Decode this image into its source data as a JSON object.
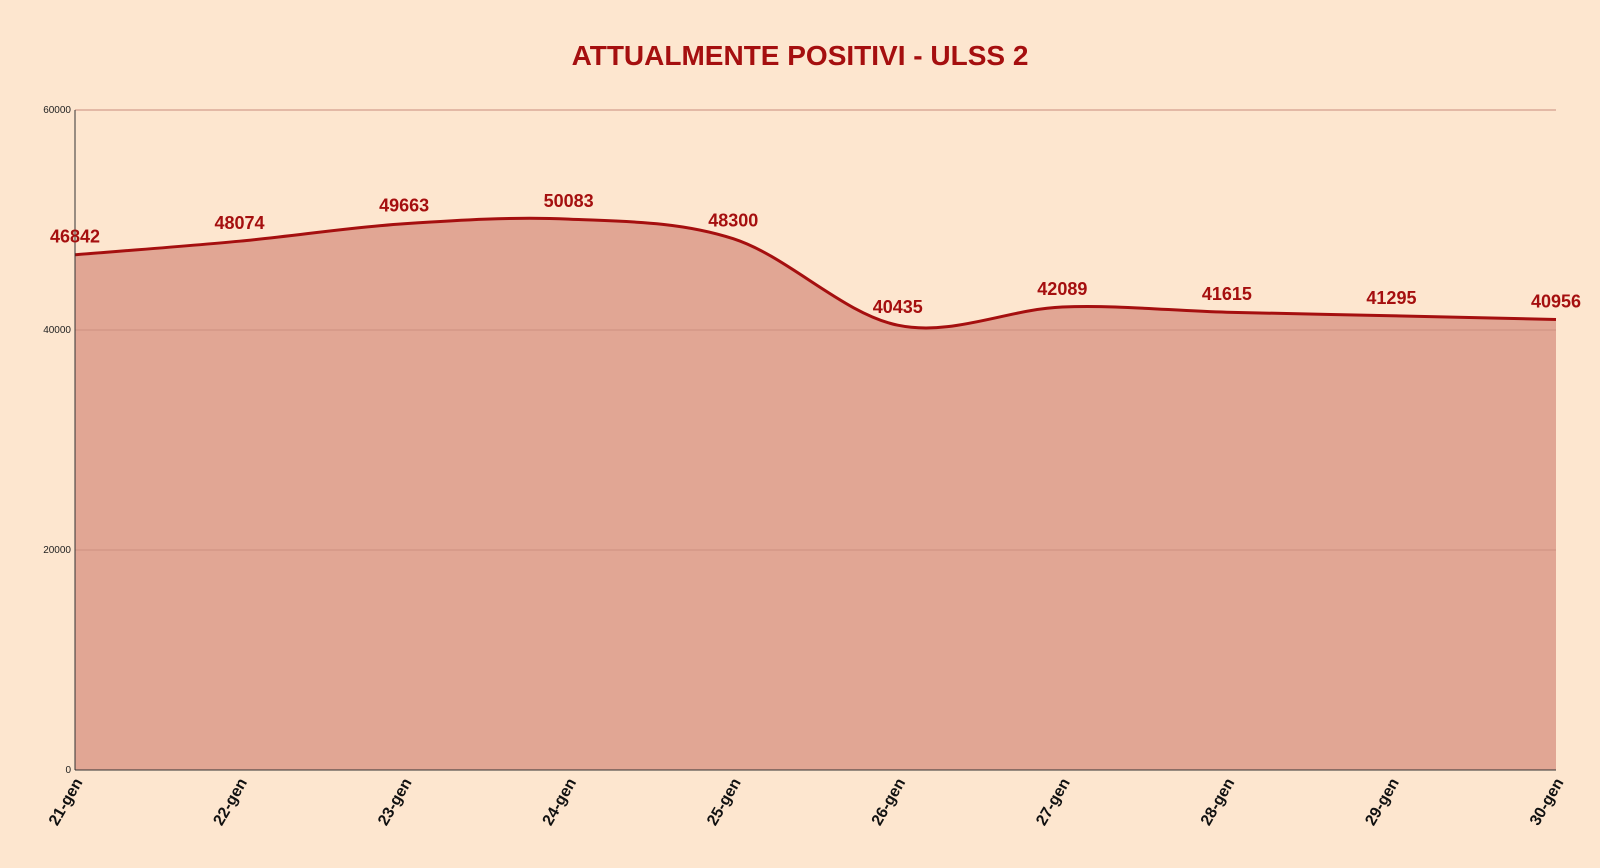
{
  "chart_data": {
    "type": "area",
    "title": "ATTUALMENTE POSITIVI - ULSS 2",
    "categories": [
      "21-gen",
      "22-gen",
      "23-gen",
      "24-gen",
      "25-gen",
      "26-gen",
      "27-gen",
      "28-gen",
      "29-gen",
      "30-gen"
    ],
    "values": [
      46842,
      48074,
      49663,
      50083,
      48300,
      40435,
      42089,
      41615,
      41295,
      40956
    ],
    "data_labels": [
      "46842",
      "48074",
      "49663",
      "50083",
      "48300",
      "40435",
      "42089",
      "41615",
      "41295",
      "40956"
    ],
    "yticks": [
      0,
      20000,
      40000,
      60000
    ],
    "ytick_labels": [
      "0",
      "20000",
      "40000",
      "60000"
    ],
    "ylim": [
      0,
      60000
    ],
    "xlabel": "",
    "ylabel": "",
    "grid": true,
    "legend": "none",
    "colors": {
      "background": "#fde6cf",
      "title": "#a50f0f",
      "line": "#a50f0f",
      "area_fill": "#dea18f",
      "gridline": "#c98c7c",
      "axis": "#333333"
    }
  }
}
